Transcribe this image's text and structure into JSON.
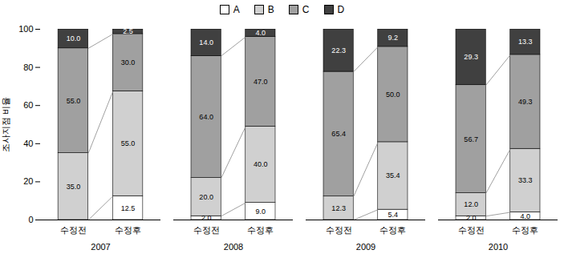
{
  "chart_data": [
    {
      "type": "bar",
      "stacked": true,
      "data_labels": true,
      "legend": "top",
      "x_label": "2007",
      "y_label": "조사지점 비율",
      "categories": [
        "수정전",
        "수정후"
      ],
      "series": [
        {
          "name": "A",
          "color": "#ffffff",
          "values": [
            0.0,
            12.5
          ],
          "value_labels": [
            null,
            "12.5"
          ]
        },
        {
          "name": "B",
          "color": "#d0d0d0",
          "values": [
            35.0,
            55.0
          ],
          "value_labels": [
            "35.0",
            "55.0"
          ]
        },
        {
          "name": "C",
          "color": "#a0a0a0",
          "values": [
            55.0,
            30.0
          ],
          "value_labels": [
            "55.0",
            "30.0"
          ]
        },
        {
          "name": "D",
          "color": "#404040",
          "values": [
            10.0,
            2.5
          ],
          "value_labels": [
            "10.0",
            "2.5"
          ]
        }
      ],
      "ylim": [
        0,
        100
      ],
      "yticks": [
        0,
        20,
        40,
        60,
        80,
        100
      ]
    },
    {
      "type": "bar",
      "stacked": true,
      "data_labels": true,
      "tick_labels": "x",
      "x_label": "2008",
      "categories": [
        "수정전",
        "수정후"
      ],
      "series": [
        {
          "name": "A",
          "color": "#ffffff",
          "values": [
            2.0,
            9.0
          ],
          "value_labels": [
            "2.0",
            "9.0"
          ]
        },
        {
          "name": "B",
          "color": "#d0d0d0",
          "values": [
            20.0,
            40.0
          ],
          "value_labels": [
            "20.0",
            "40.0"
          ]
        },
        {
          "name": "C",
          "color": "#a0a0a0",
          "values": [
            64.0,
            47.0
          ],
          "value_labels": [
            "64.0",
            "47.0"
          ]
        },
        {
          "name": "D",
          "color": "#404040",
          "values": [
            14.0,
            4.0
          ],
          "value_labels": [
            "14.0",
            "4.0"
          ]
        }
      ],
      "ylim": [
        0,
        100
      ],
      "yticks": [
        0,
        20,
        40,
        60,
        80,
        100
      ]
    },
    {
      "type": "bar",
      "stacked": true,
      "data_labels": true,
      "tick_labels": "x",
      "x_label": "2009",
      "categories": [
        "수정전",
        "수정후"
      ],
      "series": [
        {
          "name": "A",
          "color": "#ffffff",
          "values": [
            0.0,
            5.4
          ],
          "value_labels": [
            null,
            "5.4"
          ]
        },
        {
          "name": "B",
          "color": "#d0d0d0",
          "values": [
            12.3,
            35.4
          ],
          "value_labels": [
            "12.3",
            "35.4"
          ]
        },
        {
          "name": "C",
          "color": "#a0a0a0",
          "values": [
            65.4,
            50.0
          ],
          "value_labels": [
            "65.4",
            "50.0"
          ]
        },
        {
          "name": "D",
          "color": "#404040",
          "values": [
            22.3,
            9.2
          ],
          "value_labels": [
            "22.3",
            "9.2"
          ]
        }
      ],
      "ylim": [
        0,
        100
      ],
      "yticks": [
        0,
        20,
        40,
        60,
        80,
        100
      ]
    },
    {
      "type": "bar",
      "stacked": true,
      "data_labels": true,
      "tick_labels": "x",
      "x_label": "2010",
      "categories": [
        "수정전",
        "수정후"
      ],
      "series": [
        {
          "name": "A",
          "color": "#ffffff",
          "values": [
            2.0,
            4.0
          ],
          "value_labels": [
            "2.0",
            "4.0"
          ]
        },
        {
          "name": "B",
          "color": "#d0d0d0",
          "values": [
            12.0,
            33.3
          ],
          "value_labels": [
            "12.0",
            "33.3"
          ]
        },
        {
          "name": "C",
          "color": "#a0a0a0",
          "values": [
            56.7,
            49.3
          ],
          "value_labels": [
            "56.7",
            "49.3"
          ]
        },
        {
          "name": "D",
          "color": "#404040",
          "values": [
            29.3,
            13.3
          ],
          "value_labels": [
            "29.3",
            "13.3"
          ]
        }
      ],
      "ylim": [
        0,
        100
      ],
      "yticks": [
        0,
        20,
        40,
        60,
        80,
        100
      ]
    }
  ]
}
